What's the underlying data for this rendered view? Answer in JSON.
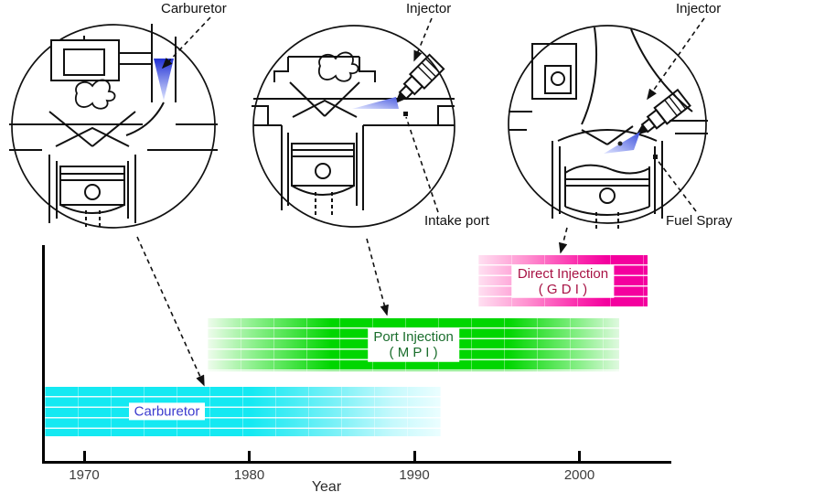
{
  "diagram": {
    "top_labels": {
      "carburetor": "Carburetor",
      "injector_port": "Injector",
      "injector_direct": "Injector"
    },
    "callout_labels": {
      "intake_port": "Intake port",
      "fuel_spray": "Fuel Spray"
    },
    "insets": [
      {
        "name": "carburetor-engine",
        "caption": "Carburetor"
      },
      {
        "name": "port-injection-engine",
        "caption": "Injector"
      },
      {
        "name": "direct-injection-engine",
        "caption": "Injector"
      }
    ]
  },
  "timeline": {
    "bars": [
      {
        "key": "carburetor",
        "label": "Carburetor",
        "sub": "",
        "start": 1967.6,
        "end": 1991.6,
        "color_solid": "#14e9f2",
        "color_fade": "#ebfeff",
        "text_color": "#3a3ace"
      },
      {
        "key": "port-injection",
        "label": "Port Injection",
        "sub": "( M P I )",
        "start": 1977.5,
        "end": 2002.4,
        "color_solid": "#00d600",
        "color_fade": "#dff9df",
        "text_color": "#1b6e2d"
      },
      {
        "key": "direct-injection",
        "label": "Direct Injection",
        "sub": "( G D I )",
        "start": 1993.9,
        "end": 2004.1,
        "color_solid": "#f4009e",
        "color_fade": "#ffe0f1",
        "text_color": "#a81345"
      }
    ]
  },
  "chart_data": {
    "type": "bar",
    "variant": "timeline",
    "title": "",
    "xlabel": "Year",
    "ylabel": "",
    "x_ticks": [
      1970,
      1980,
      1990,
      2000
    ],
    "xlim": [
      1967.6,
      2005.6
    ],
    "grid": false,
    "legend_position": "none",
    "series": [
      {
        "name": "Carburetor",
        "start": 1968,
        "end": 1991.5
      },
      {
        "name": "Port Injection ( M P I )",
        "start": 1977.5,
        "end": 2002.5
      },
      {
        "name": "Direct Injection ( G D I )",
        "start": 1994,
        "end": 2004
      }
    ]
  },
  "colors": {
    "line_art": "#111111",
    "fuel_spray_blue": "#2131d4",
    "carburetor_bar": "#14e9f2",
    "port_bar": "#00d600",
    "direct_bar": "#f4009e"
  }
}
